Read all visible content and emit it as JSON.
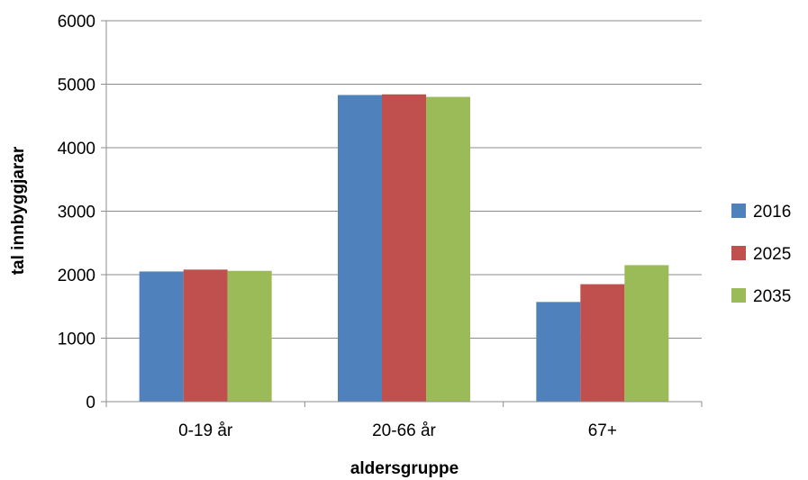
{
  "chart_data": {
    "type": "bar",
    "title": "",
    "xlabel": "aldersgruppe",
    "ylabel": "tal innbyggjarar",
    "categories": [
      "0-19 år",
      "20-66 år",
      "67+"
    ],
    "series": [
      {
        "name": "2016",
        "values": [
          2050,
          4830,
          1570
        ],
        "color": "#4f81bd"
      },
      {
        "name": "2025",
        "values": [
          2080,
          4840,
          1850
        ],
        "color": "#c0504d"
      },
      {
        "name": "2035",
        "values": [
          2060,
          4800,
          2150
        ],
        "color": "#9bbb59"
      }
    ],
    "ylim": [
      0,
      6000
    ],
    "yticks": [
      "0",
      "1000",
      "2000",
      "3000",
      "4000",
      "5000",
      "6000"
    ],
    "grid": true,
    "legend": "right"
  }
}
